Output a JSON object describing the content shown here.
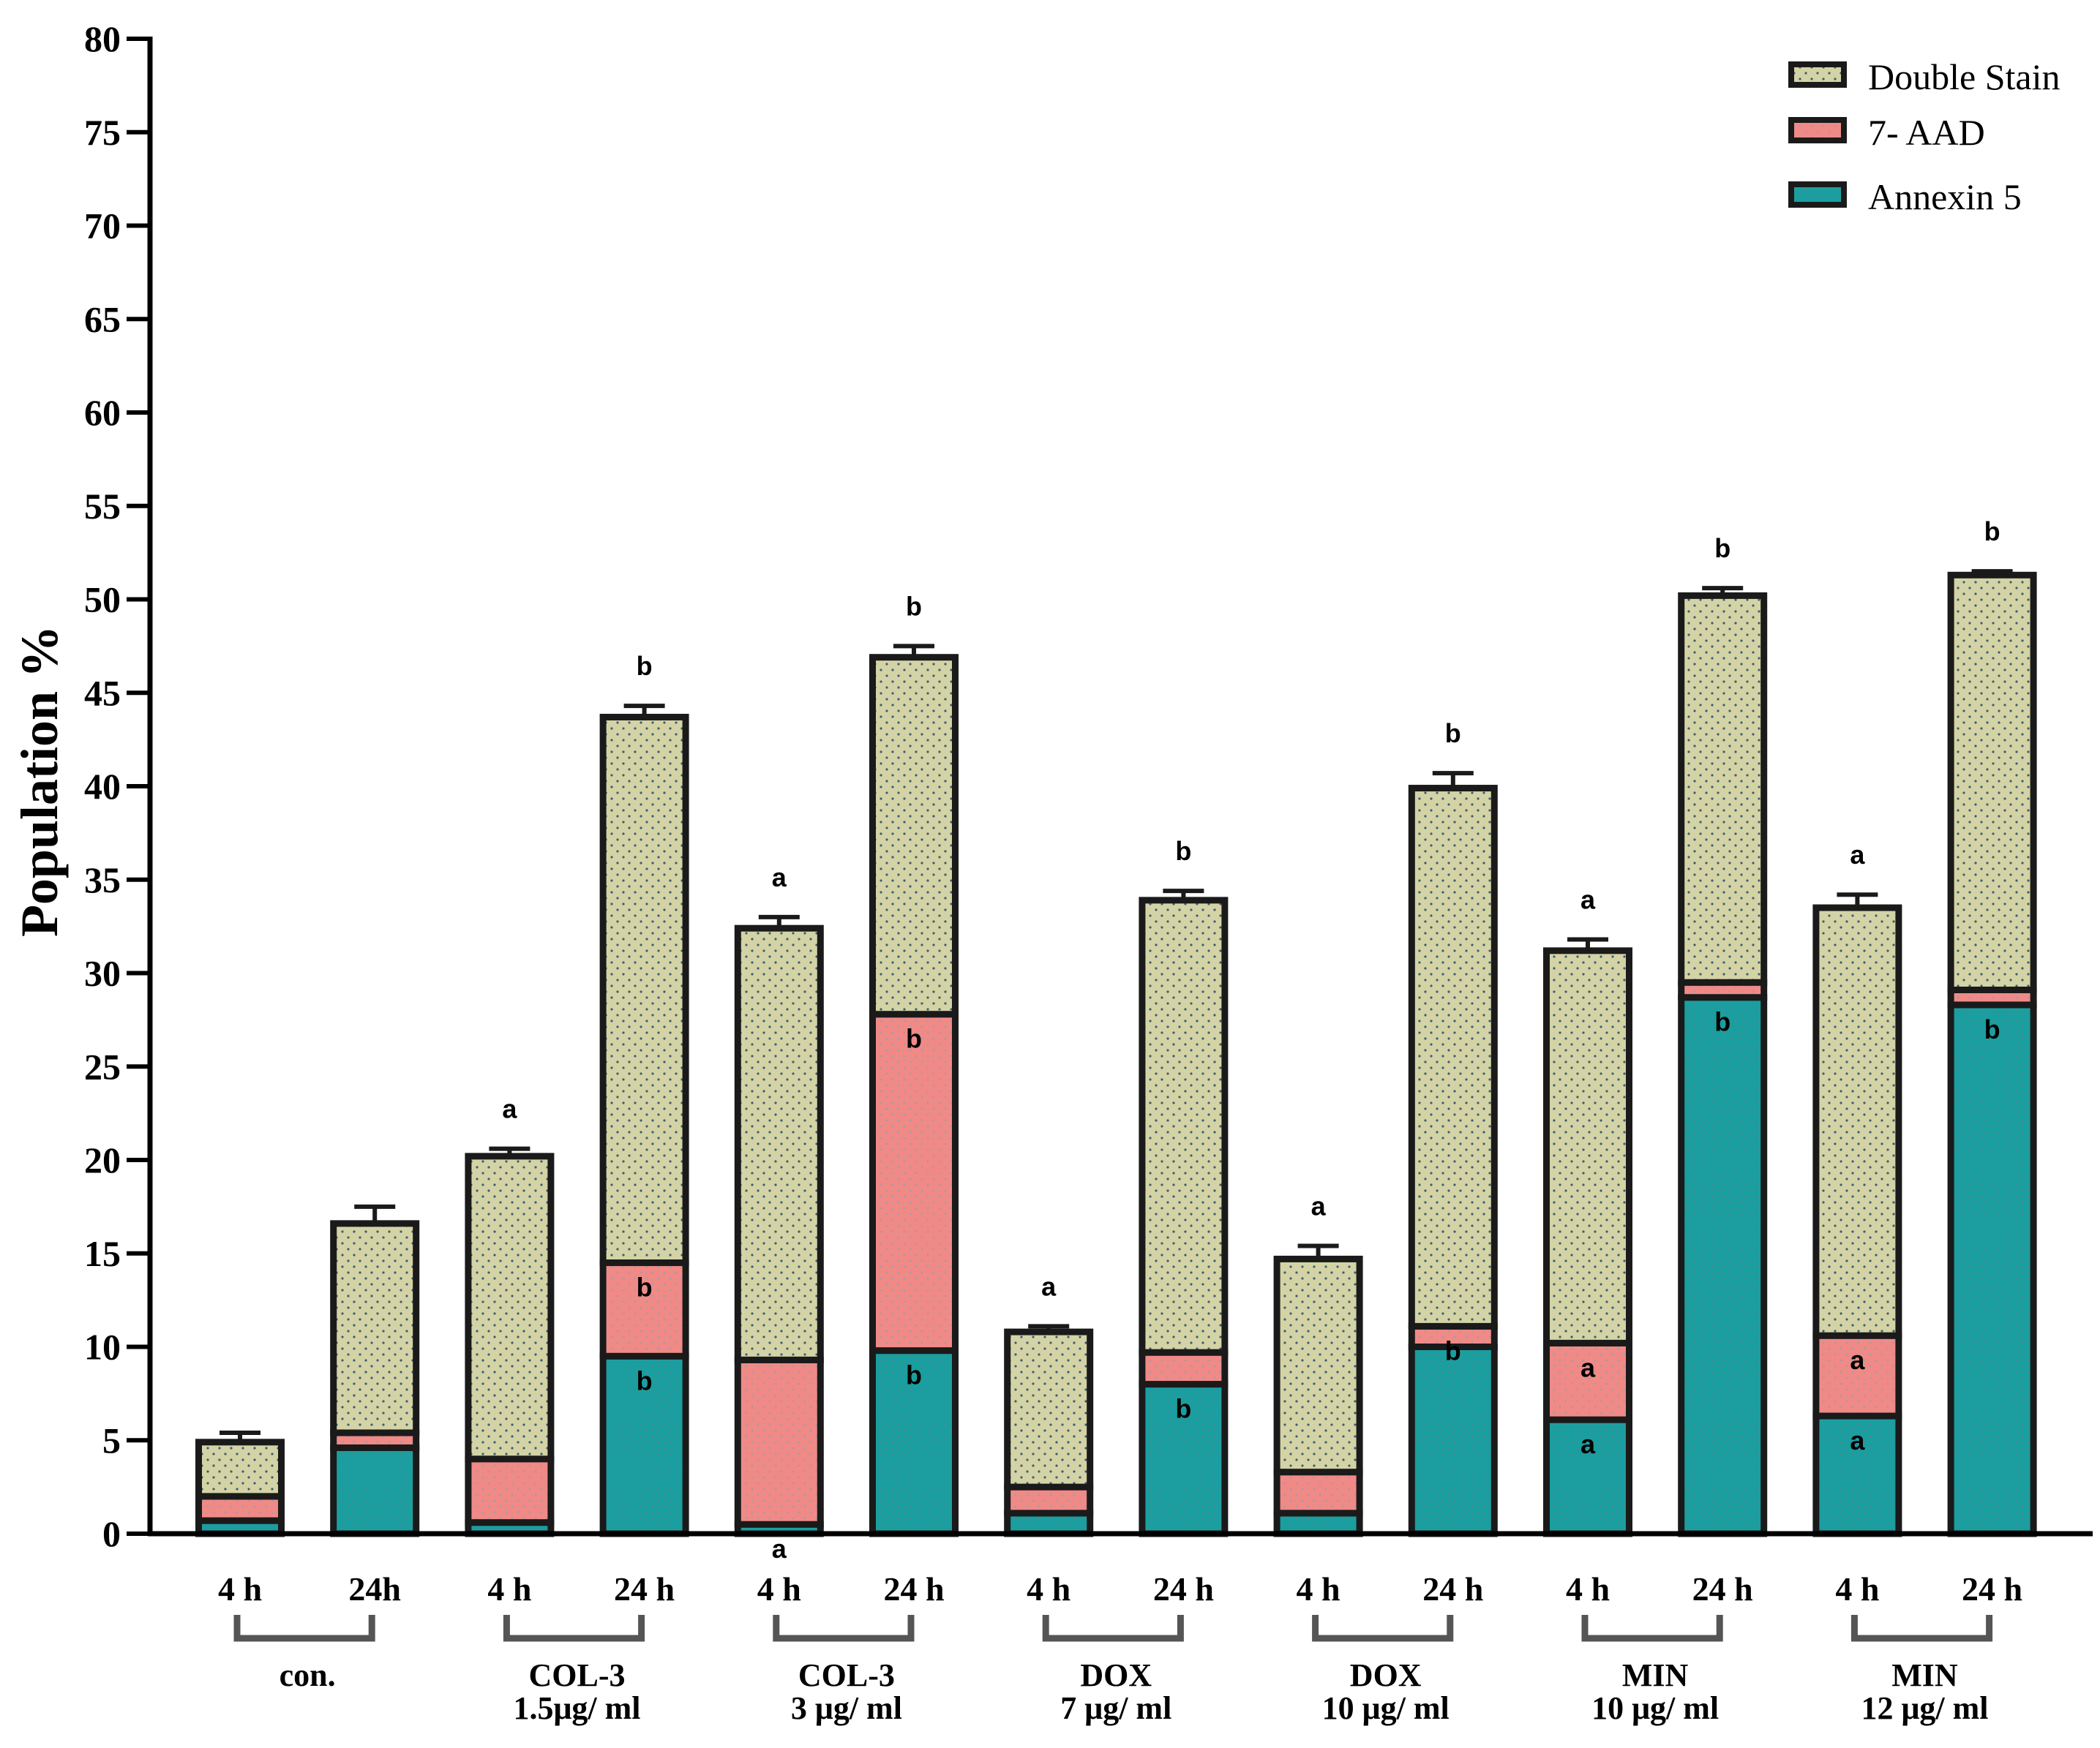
{
  "colors": {
    "double_stain": "#d3d3a6",
    "double_stain_dot": "#3f5d6f",
    "aad": "#f08a87",
    "aad_dot": "#9e9aa0",
    "annexin": "#1a9ea0",
    "annexin_dot": "#4f8a8c",
    "outline": "#1a1a1a"
  },
  "chart_data": {
    "type": "bar",
    "stacked": true,
    "ylabel": "Population %",
    "xlabel": "",
    "ylim": [
      0,
      80
    ],
    "yticks": [
      "0",
      "5",
      "10",
      "15",
      "20",
      "25",
      "30",
      "35",
      "40",
      "45",
      "50",
      "55",
      "60",
      "65",
      "70",
      "75",
      "80"
    ],
    "grid": false,
    "legend_position": "top-right",
    "categories": [
      "4 h",
      "24h",
      "4 h",
      "24 h",
      "4 h",
      "24 h",
      "4 h",
      "24  h",
      "4 h",
      "24 h",
      "4 h",
      "24 h",
      "4 h",
      "24 h"
    ],
    "groups": [
      {
        "lines": [
          "con."
        ]
      },
      {
        "lines": [
          "COL-3",
          "1.5μg/ ml"
        ]
      },
      {
        "lines": [
          "COL-3",
          "3 μg/ ml"
        ]
      },
      {
        "lines": [
          "DOX",
          "7 μg/ ml"
        ]
      },
      {
        "lines": [
          "DOX",
          "10 μg/ ml"
        ]
      },
      {
        "lines": [
          "MIN",
          "10 μg/ ml"
        ]
      },
      {
        "lines": [
          "MIN",
          "12 μg/ ml"
        ]
      }
    ],
    "series": [
      {
        "name": "Annexin 5",
        "color_key": "annexin",
        "values": [
          0.7,
          4.6,
          0.6,
          9.5,
          0.5,
          9.8,
          1.1,
          8.0,
          1.1,
          10.0,
          6.1,
          28.7,
          6.3,
          28.3
        ],
        "errors": [
          0.6,
          0.5,
          0.3,
          0.3,
          0.3,
          1.4,
          0.3,
          0.4,
          0.3,
          0.3,
          0.5,
          0.0,
          0.9,
          0.3
        ],
        "labels": [
          "",
          "",
          "",
          "b",
          "a",
          "b",
          "",
          "b",
          "",
          "",
          "a",
          "b",
          "a",
          "b"
        ]
      },
      {
        "name": "7- AAD",
        "color_key": "aad",
        "values": [
          1.3,
          0.8,
          3.4,
          5.0,
          8.8,
          18.0,
          1.4,
          1.7,
          2.2,
          1.1,
          4.1,
          0.8,
          4.3,
          0.8
        ],
        "errors": [
          0.5,
          0.5,
          0.4,
          0.5,
          0.7,
          2.3,
          0.3,
          0.7,
          0.5,
          0.3,
          0.3,
          0.3,
          0.5,
          0.4
        ],
        "labels": [
          "",
          "",
          "",
          "b",
          "",
          "b",
          "",
          "",
          "",
          "b",
          "a",
          "",
          "a",
          ""
        ]
      },
      {
        "name": "Double Stain",
        "color_key": "double_stain",
        "values": [
          2.9,
          11.2,
          16.2,
          29.2,
          23.1,
          19.1,
          8.3,
          24.2,
          11.4,
          28.8,
          21.0,
          20.7,
          22.9,
          22.2
        ],
        "errors": [
          0.5,
          0.9,
          0.4,
          0.6,
          0.6,
          0.6,
          0.3,
          0.5,
          0.7,
          0.8,
          0.6,
          0.4,
          0.7,
          0.2
        ],
        "labels": [
          "",
          "",
          "a",
          "b",
          "a",
          "b",
          "a",
          "b",
          "a",
          "b",
          "a",
          "b",
          "a",
          "b"
        ]
      }
    ],
    "legend": [
      "Double Stain",
      "7- AAD",
      "Annexin 5"
    ]
  }
}
